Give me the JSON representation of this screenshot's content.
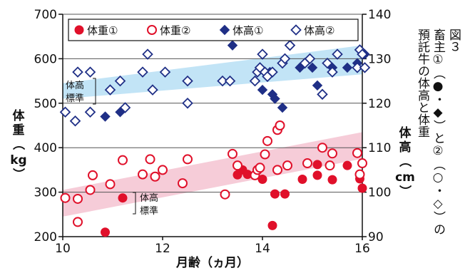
{
  "chart_data": {
    "type": "scatter",
    "xlabel": "月齢（ヵ月）",
    "ylabel_left": "体重（kg）",
    "ylabel_left_parts": [
      "体",
      "重",
      "（",
      "kg",
      "）"
    ],
    "ylabel_right": "体高（cm）",
    "ylabel_right_parts": [
      "体",
      "高",
      "（",
      "cm",
      "）"
    ],
    "xlim": [
      10,
      16
    ],
    "ylim_left": [
      200,
      700
    ],
    "ylim_right": [
      90,
      140
    ],
    "x_ticks": [
      "10",
      "12",
      "14",
      "16"
    ],
    "y_ticks_left": [
      "200",
      "300",
      "400",
      "500",
      "600",
      "700"
    ],
    "y_ticks_right": [
      "90",
      "100",
      "110",
      "120",
      "130",
      "140"
    ],
    "grid": "horizontal",
    "legend_position": "top",
    "caption": "図３　畜主①（●・◆）と②（○・◇）の預託牛の体高と体重",
    "caption_columns": [
      "図３",
      "畜主①（●・◆）と②（○・◇）の",
      "預託牛の体高と体重"
    ],
    "colors": {
      "red": "#e0102a",
      "navy": "#1f2f86",
      "pink_band": "#f6c9d6",
      "blue_band": "#bfe3f5"
    },
    "bands": [
      {
        "label": [
          "体高",
          "標準"
        ],
        "axis": "right",
        "x": [
          10,
          16
        ],
        "lower": [
          121,
          126.5
        ],
        "upper": [
          124.5,
          133
        ]
      },
      {
        "label": [
          "体高",
          "標準"
        ],
        "axis": "left",
        "x": [
          10,
          16
        ],
        "lower": [
          245,
          375
        ],
        "upper": [
          305,
          435
        ]
      }
    ],
    "series": [
      {
        "name": "体重①",
        "axis": "left",
        "marker": "filled-circle",
        "color": "#e0102a",
        "points": [
          [
            10.85,
            210
          ],
          [
            11.2,
            287
          ],
          [
            13.5,
            339
          ],
          [
            13.6,
            350
          ],
          [
            13.7,
            340
          ],
          [
            14.0,
            329
          ],
          [
            14.2,
            225
          ],
          [
            14.25,
            296
          ],
          [
            14.3,
            350
          ],
          [
            14.45,
            296
          ],
          [
            14.8,
            329
          ],
          [
            15.1,
            338
          ],
          [
            15.1,
            362
          ],
          [
            15.4,
            328
          ],
          [
            15.7,
            360
          ],
          [
            15.95,
            330
          ],
          [
            16.0,
            309
          ]
        ]
      },
      {
        "name": "体重②",
        "axis": "left",
        "marker": "open-circle",
        "color": "#e0102a",
        "points": [
          [
            10.05,
            287
          ],
          [
            10.3,
            285
          ],
          [
            10.3,
            233
          ],
          [
            10.55,
            305
          ],
          [
            10.6,
            338
          ],
          [
            10.95,
            318
          ],
          [
            11.2,
            372
          ],
          [
            11.6,
            340
          ],
          [
            11.75,
            374
          ],
          [
            11.85,
            335
          ],
          [
            12.0,
            350
          ],
          [
            12.4,
            320
          ],
          [
            12.5,
            374
          ],
          [
            13.25,
            295
          ],
          [
            13.4,
            386
          ],
          [
            13.5,
            360
          ],
          [
            13.85,
            338
          ],
          [
            13.9,
            350
          ],
          [
            13.95,
            355
          ],
          [
            14.05,
            385
          ],
          [
            14.1,
            415
          ],
          [
            14.3,
            350
          ],
          [
            14.3,
            440
          ],
          [
            14.35,
            450
          ],
          [
            14.5,
            360
          ],
          [
            14.9,
            365
          ],
          [
            15.2,
            400
          ],
          [
            15.35,
            360
          ],
          [
            15.4,
            387
          ],
          [
            15.9,
            388
          ],
          [
            15.95,
            340
          ],
          [
            16.0,
            365
          ]
        ]
      },
      {
        "name": "体高①",
        "axis": "right",
        "marker": "filled-diamond",
        "color": "#1f2f86",
        "points": [
          [
            10.85,
            117
          ],
          [
            11.15,
            118
          ],
          [
            13.35,
            125
          ],
          [
            13.4,
            133
          ],
          [
            14.0,
            123
          ],
          [
            14.15,
            127
          ],
          [
            14.2,
            122
          ],
          [
            14.25,
            121
          ],
          [
            14.4,
            119
          ],
          [
            14.75,
            128
          ],
          [
            15.0,
            128
          ],
          [
            15.1,
            124
          ],
          [
            15.4,
            128
          ],
          [
            15.7,
            128
          ],
          [
            15.9,
            129
          ],
          [
            16.05,
            131
          ]
        ]
      },
      {
        "name": "体高②",
        "axis": "right",
        "marker": "open-diamond",
        "color": "#1f2f86",
        "points": [
          [
            10.05,
            118
          ],
          [
            10.25,
            116
          ],
          [
            10.3,
            127
          ],
          [
            10.55,
            118
          ],
          [
            10.55,
            127
          ],
          [
            10.95,
            123
          ],
          [
            11.15,
            125
          ],
          [
            11.25,
            119
          ],
          [
            11.6,
            127
          ],
          [
            11.7,
            131
          ],
          [
            11.8,
            123
          ],
          [
            12.05,
            127
          ],
          [
            12.5,
            120
          ],
          [
            12.5,
            125
          ],
          [
            13.2,
            125
          ],
          [
            13.35,
            125
          ],
          [
            13.85,
            125
          ],
          [
            13.9,
            127
          ],
          [
            13.95,
            128
          ],
          [
            14.0,
            131
          ],
          [
            14.05,
            127
          ],
          [
            14.1,
            126
          ],
          [
            14.2,
            127
          ],
          [
            14.4,
            129
          ],
          [
            14.45,
            130
          ],
          [
            14.55,
            133
          ],
          [
            14.85,
            129
          ],
          [
            14.95,
            130
          ],
          [
            15.2,
            122
          ],
          [
            15.3,
            129
          ],
          [
            15.4,
            127
          ],
          [
            15.5,
            131
          ],
          [
            15.9,
            128
          ],
          [
            15.95,
            132
          ],
          [
            16.0,
            131
          ],
          [
            16.05,
            128
          ]
        ]
      }
    ]
  }
}
